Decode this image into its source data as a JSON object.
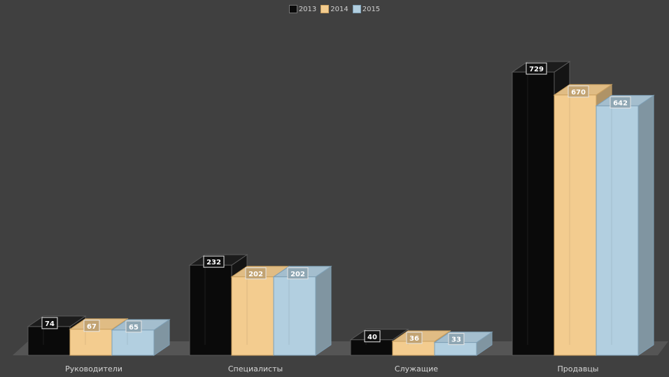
{
  "chart_data": {
    "type": "bar",
    "categories": [
      "Руководители",
      "Специалисты",
      "Служащие",
      "Продавцы"
    ],
    "series": [
      {
        "name": "2013",
        "values": [
          74,
          232,
          40,
          729
        ],
        "color": "#0a0a0a",
        "edge": "#5a5a5a"
      },
      {
        "name": "2014",
        "values": [
          67,
          202,
          36,
          670
        ],
        "color": "#f3cc8f",
        "edge": "#caa060"
      },
      {
        "name": "2015",
        "values": [
          65,
          202,
          33,
          642
        ],
        "color": "#b2cfe0",
        "edge": "#7e9fb5"
      }
    ],
    "legend_position": "top-center",
    "grid": false,
    "data_labels": true,
    "style": "3d-clustered-column"
  },
  "colors": {
    "background": "#404040",
    "floor": "#555555",
    "label_text": "#d6d6d6"
  }
}
